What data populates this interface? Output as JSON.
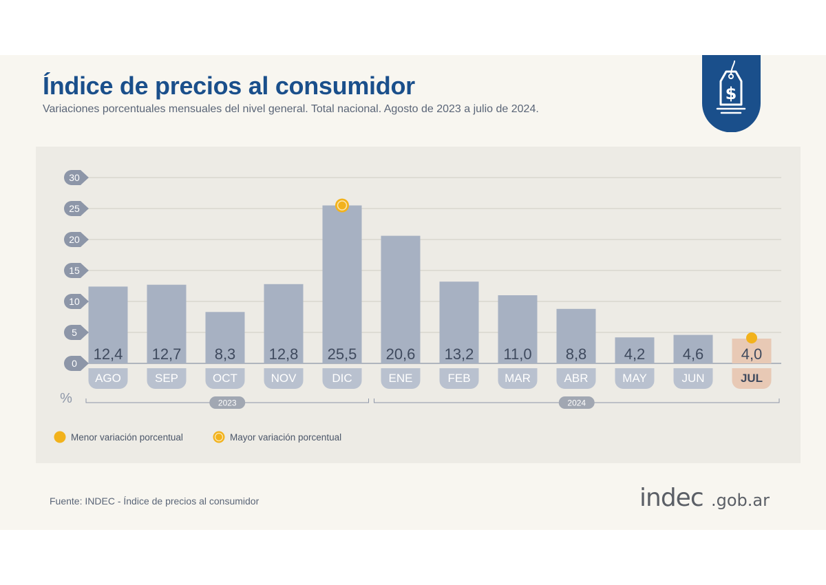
{
  "header": {
    "title": "Índice de precios al consumidor",
    "subtitle": "Variaciones porcentuales mensuales del nivel general. Total nacional. Agosto de 2023 a julio de 2024."
  },
  "badge": {
    "icon": "price-tag-dollar-icon",
    "symbol": "$"
  },
  "chart_data": {
    "type": "bar",
    "title": "Índice de precios al consumidor",
    "ylabel": "%",
    "ylim": [
      0,
      30
    ],
    "yticks": [
      "0",
      "5",
      "10",
      "15",
      "20",
      "25",
      "30"
    ],
    "categories": [
      "AGO",
      "SEP",
      "OCT",
      "NOV",
      "DIC",
      "ENE",
      "FEB",
      "MAR",
      "ABR",
      "MAY",
      "JUN",
      "JUL"
    ],
    "values": [
      12.4,
      12.7,
      8.3,
      12.8,
      25.5,
      20.6,
      13.2,
      11.0,
      8.8,
      4.2,
      4.6,
      4.0
    ],
    "value_labels": [
      "12,4",
      "12,7",
      "8,3",
      "12,8",
      "25,5",
      "20,6",
      "13,2",
      "11,0",
      "8,8",
      "4,2",
      "4,6",
      "4,0"
    ],
    "years": [
      {
        "label": "2023",
        "from": "AGO",
        "to": "DIC"
      },
      {
        "label": "2024",
        "from": "ENE",
        "to": "JUL"
      }
    ],
    "highlight_min": "JUL",
    "highlight_max": "DIC",
    "bar_color": "#a7b1c2",
    "highlight_color": "#e8c9b5",
    "marker_color": "#f2b21c",
    "legend": {
      "min_label": "Menor variación porcentual",
      "max_label": "Mayor variación porcentual"
    }
  },
  "footer": {
    "source": "Fuente: INDEC - Índice de precios al consumidor",
    "logo_text": "indec",
    "logo_domain": ".gob.ar"
  }
}
